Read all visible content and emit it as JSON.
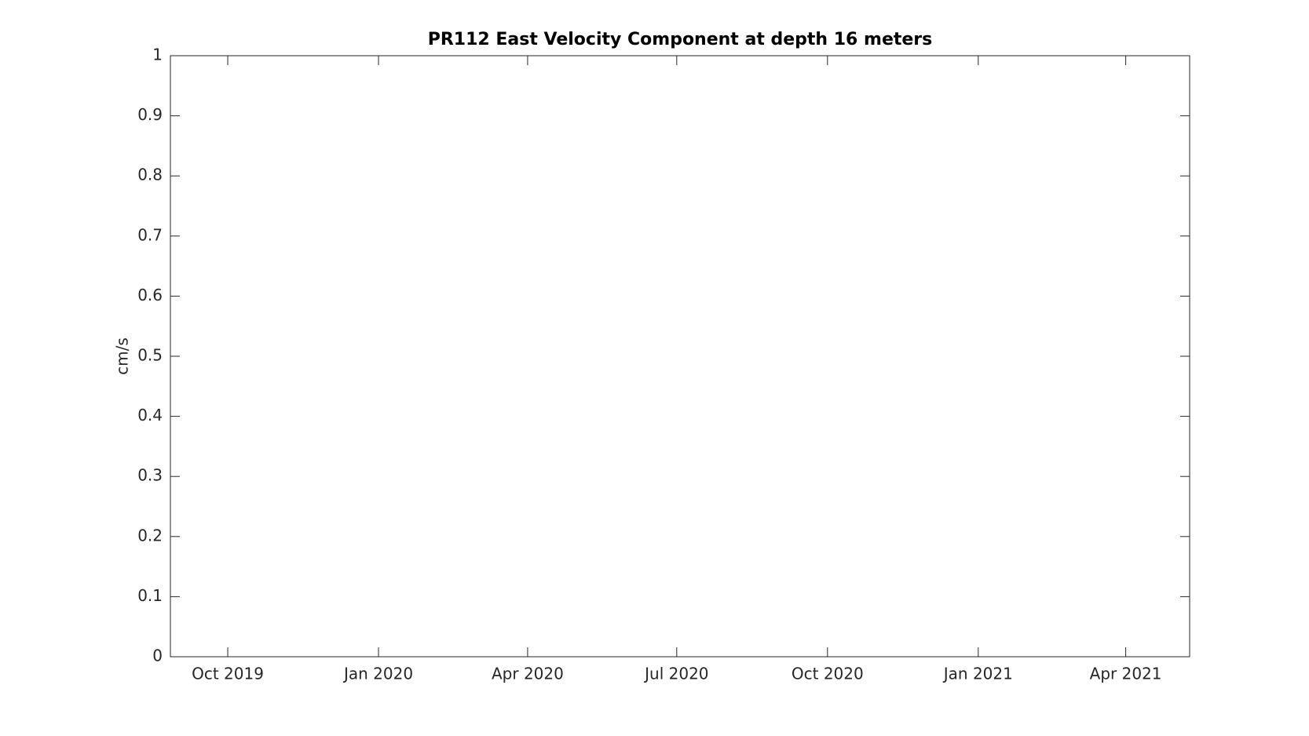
{
  "chart_data": {
    "type": "line",
    "title": "PR112 East Velocity Component at depth 16 meters",
    "y_label": "cm/s",
    "series": [],
    "xlim": [
      "2019-08-27",
      "2021-05-10"
    ],
    "xticks": [
      {
        "value": "2019-10-01",
        "label": "Oct 2019"
      },
      {
        "value": "2020-01-01",
        "label": "Jan 2020"
      },
      {
        "value": "2020-04-01",
        "label": "Apr 2020"
      },
      {
        "value": "2020-07-01",
        "label": "Jul 2020"
      },
      {
        "value": "2020-10-01",
        "label": "Oct 2020"
      },
      {
        "value": "2021-01-01",
        "label": "Jan 2021"
      },
      {
        "value": "2021-04-01",
        "label": "Apr 2021"
      }
    ],
    "ylim": [
      0,
      1
    ],
    "yticks": [
      0,
      0.1,
      0.2,
      0.3,
      0.4,
      0.5,
      0.6,
      0.7,
      0.8,
      0.9,
      1
    ],
    "grid": false
  }
}
